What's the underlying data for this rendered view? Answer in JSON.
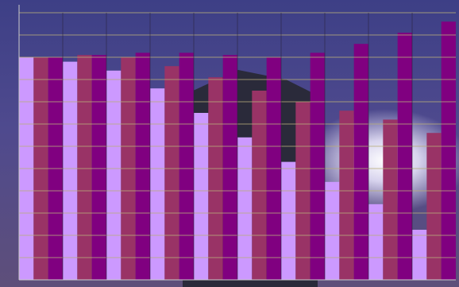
{
  "chart_data": {
    "type": "bar",
    "categories": [
      null,
      null,
      null,
      null,
      null,
      null,
      null,
      null,
      null,
      null
    ],
    "series": [
      {
        "color": "#cc99ff",
        "values": [
          10.0,
          9.8,
          9.4,
          8.6,
          7.5,
          6.4,
          5.3,
          4.4,
          3.4,
          2.25
        ]
      },
      {
        "color": "#993366",
        "values": [
          10.0,
          10.1,
          10.0,
          9.6,
          9.1,
          8.5,
          8.0,
          7.6,
          7.2,
          6.6
        ]
      },
      {
        "color": "#800080",
        "values": [
          10.0,
          10.1,
          10.2,
          10.2,
          10.1,
          10.0,
          10.2,
          10.6,
          11.1,
          11.6
        ]
      }
    ],
    "ylim": [
      0,
      12
    ],
    "yticks": [
      0,
      1,
      2,
      3,
      4,
      5,
      6,
      7,
      8,
      9,
      10,
      11,
      12
    ],
    "grid": true
  }
}
